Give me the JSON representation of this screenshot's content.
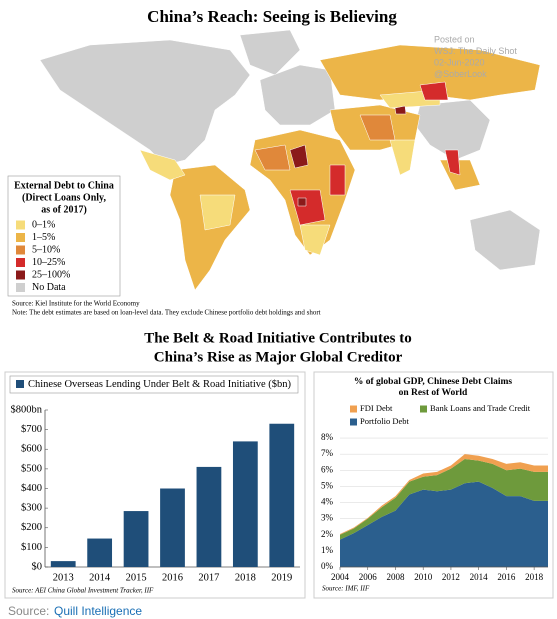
{
  "map": {
    "title": "China’s Reach: Seeing is Believing",
    "legend_title": [
      "External Debt to China",
      "(Direct Loans Only,",
      "as of 2017)"
    ],
    "legend": [
      {
        "label": "0–1%",
        "color": "#f6dc7a"
      },
      {
        "label": "1–5%",
        "color": "#ecb548"
      },
      {
        "label": "5–10%",
        "color": "#e0883a"
      },
      {
        "label": "10–25%",
        "color": "#d42b2b"
      },
      {
        "label": "25–100%",
        "color": "#8b1a1a"
      },
      {
        "label": "No Data",
        "color": "#cfcfcf"
      }
    ],
    "source": "Source:  Kiel Institute for the World Economy",
    "note": "Note:  The debt estimates are based on loan-level data. They exclude Chinese portfolio debt holdings and short"
  },
  "watermark": [
    "Posted on",
    "WSJ: The Daily Shot",
    "02-Jun-2020",
    "@SoberLook"
  ],
  "section_title": [
    "The Belt & Road Initiative Contributes to",
    "China’s Rise as Major Global Creditor"
  ],
  "chart_data": [
    {
      "type": "bar",
      "categories": [
        "2013",
        "2014",
        "2015",
        "2016",
        "2017",
        "2018",
        "2019"
      ],
      "series": [
        {
          "name": "Chinese Overseas Lending Under Belt & Road Initiative ($bn)",
          "color": "#1f4e79",
          "values": [
            30,
            145,
            285,
            400,
            510,
            640,
            730
          ]
        }
      ],
      "ylim": [
        0,
        800
      ],
      "yticks": [
        {
          "value": 0,
          "label": "$0"
        },
        {
          "value": 100,
          "label": "$100"
        },
        {
          "value": 200,
          "label": "$200"
        },
        {
          "value": 300,
          "label": "$300"
        },
        {
          "value": 400,
          "label": "$400"
        },
        {
          "value": 500,
          "label": "$500"
        },
        {
          "value": 600,
          "label": "$600"
        },
        {
          "value": 700,
          "label": "$700"
        },
        {
          "value": 800,
          "label": "$800bn"
        }
      ],
      "source": "Source:  AEI China Global Investment Tracker, IIF"
    },
    {
      "type": "stacked_area",
      "title": [
        "% of global GDP, Chinese Debt Claims",
        "on Rest of World"
      ],
      "x": [
        2004,
        2005,
        2006,
        2007,
        2008,
        2009,
        2010,
        2011,
        2012,
        2013,
        2014,
        2015,
        2016,
        2017,
        2018,
        2019
      ],
      "series": [
        {
          "name": "Portfolio Debt",
          "color": "#2b5f8e",
          "values": [
            1.7,
            2.1,
            2.6,
            3.1,
            3.5,
            4.5,
            4.8,
            4.7,
            4.8,
            5.2,
            5.3,
            4.9,
            4.4,
            4.4,
            4.1,
            4.1
          ]
        },
        {
          "name": "Bank Loans and Trade Credit",
          "color": "#6e9a3c",
          "values": [
            0.3,
            0.3,
            0.4,
            0.6,
            0.8,
            0.8,
            0.8,
            1.0,
            1.3,
            1.5,
            1.3,
            1.5,
            1.6,
            1.7,
            1.8,
            1.8
          ]
        },
        {
          "name": "FDI Debt",
          "color": "#f0a050",
          "values": [
            0.05,
            0.05,
            0.05,
            0.1,
            0.1,
            0.1,
            0.2,
            0.2,
            0.2,
            0.3,
            0.3,
            0.3,
            0.4,
            0.4,
            0.4,
            0.4
          ]
        }
      ],
      "xlim": [
        2004,
        2019
      ],
      "xticks": [
        2004,
        2006,
        2008,
        2010,
        2012,
        2014,
        2016,
        2018
      ],
      "ylim": [
        0,
        8.5
      ],
      "yticks": [
        {
          "value": 0,
          "label": "0%"
        },
        {
          "value": 1,
          "label": "1%"
        },
        {
          "value": 2,
          "label": "2%"
        },
        {
          "value": 3,
          "label": "3%"
        },
        {
          "value": 4,
          "label": "4%"
        },
        {
          "value": 5,
          "label": "5%"
        },
        {
          "value": 6,
          "label": "6%"
        },
        {
          "value": 7,
          "label": "7%"
        },
        {
          "value": 8,
          "label": "8%"
        }
      ],
      "grid": true,
      "source": "Source:  IMF, IIF"
    }
  ],
  "footer": {
    "label": "Source:",
    "link": "Quill Intelligence"
  }
}
